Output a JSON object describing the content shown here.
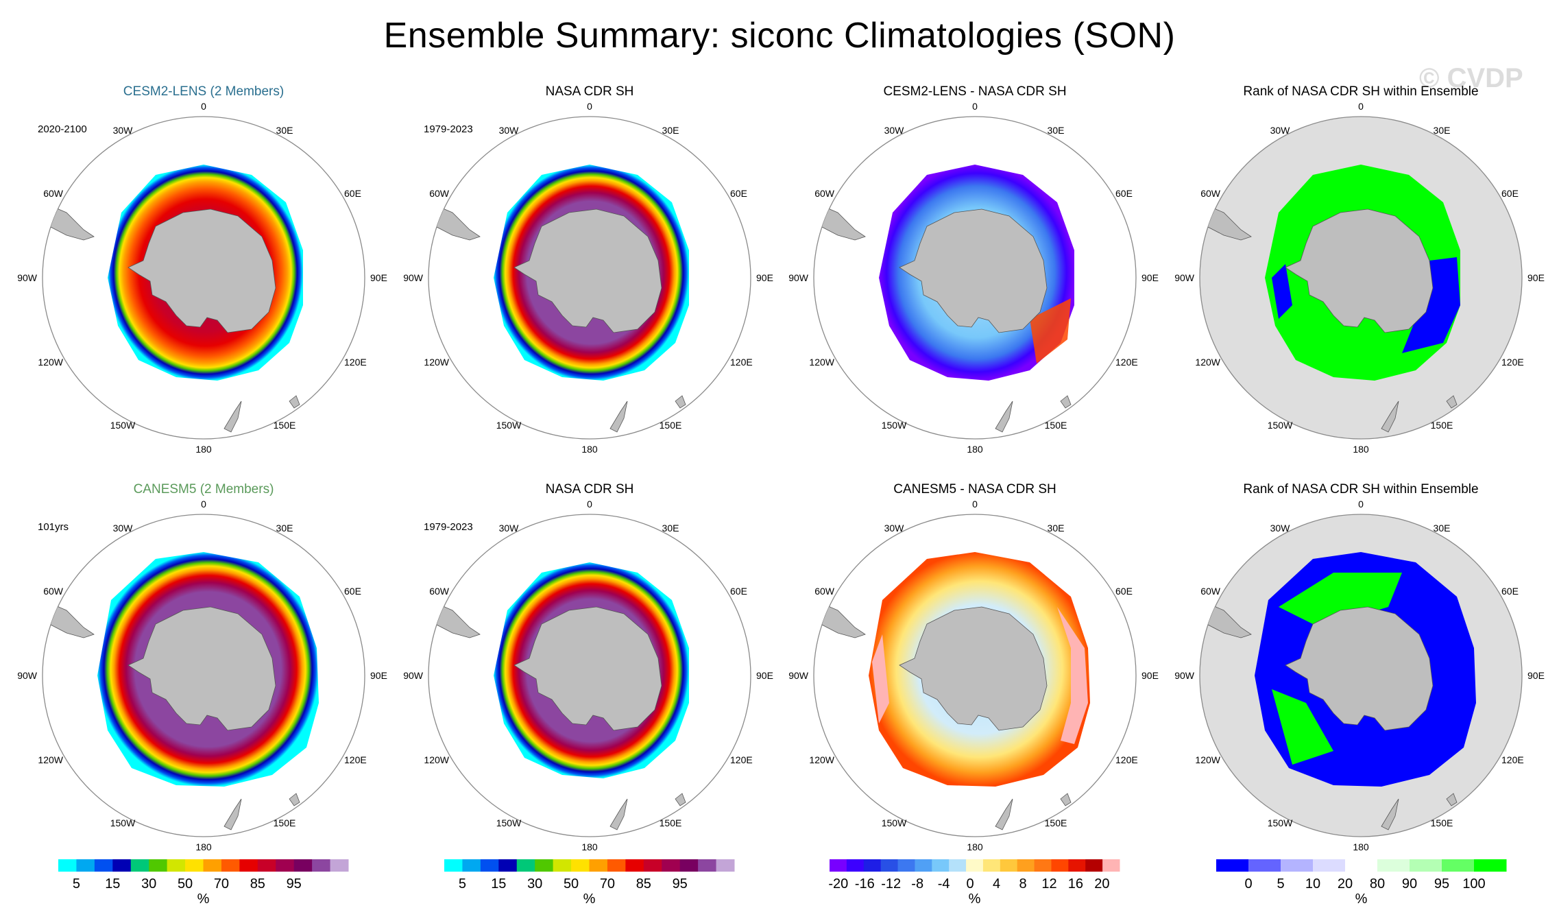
{
  "title": "Ensemble Summary: siconc Climatologies (SON)",
  "watermark": "© CVDP",
  "rows": [
    {
      "panels": [
        {
          "title": "CESM2-LENS (2 Members)",
          "title_color": "#2a6f8f",
          "period": "2020-2100",
          "kind": "clim_model"
        },
        {
          "title": "NASA CDR SH",
          "period": "1979-2023",
          "kind": "clim_obs"
        },
        {
          "title": "CESM2-LENS - NASA CDR SH",
          "kind": "diff"
        },
        {
          "title": "Rank of NASA CDR SH within Ensemble",
          "kind": "rank"
        }
      ]
    },
    {
      "panels": [
        {
          "title": "CANESM5 (2 Members)",
          "title_color": "#5a9a5a",
          "period": "101yrs",
          "kind": "clim_model2"
        },
        {
          "title": "NASA CDR SH",
          "period": "1979-2023",
          "kind": "clim_obs"
        },
        {
          "title": "CANESM5 - NASA CDR SH",
          "kind": "diff2"
        },
        {
          "title": "Rank of NASA CDR SH within Ensemble",
          "kind": "rank2"
        }
      ]
    }
  ],
  "map_labels": {
    "top": "0",
    "bottom": "180",
    "left": "90W",
    "right": "90E",
    "upper_left": [
      "30W",
      "60W"
    ],
    "upper_right": [
      "30E",
      "60E"
    ],
    "lower_left": [
      "120W",
      "150W"
    ],
    "lower_right": [
      "120E",
      "150E"
    ]
  },
  "colorbars": {
    "clim": {
      "units": "%",
      "labels": [
        "5",
        "15",
        "30",
        "50",
        "70",
        "85",
        "95"
      ],
      "colors": [
        "#00ffff",
        "#00a8f0",
        "#0050f0",
        "#0000b4",
        "#00c878",
        "#50c800",
        "#d2e600",
        "#ffe100",
        "#ffa000",
        "#ff5a00",
        "#e60000",
        "#c80028",
        "#a00050",
        "#780060",
        "#8c46a0",
        "#c3a5d7"
      ]
    },
    "diff": {
      "units": "%",
      "labels": [
        "-20",
        "-16",
        "-12",
        "-8",
        "-4",
        "0",
        "4",
        "8",
        "12",
        "16",
        "20"
      ],
      "colors": [
        "#7800ff",
        "#3c00ff",
        "#1e1ee6",
        "#2850e6",
        "#3c78f0",
        "#50a0f5",
        "#78c8fa",
        "#b4e1fa",
        "#fffac8",
        "#ffe678",
        "#ffc83c",
        "#ffa01e",
        "#ff7814",
        "#ff4600",
        "#e61400",
        "#b40000",
        "#ffb4b4"
      ]
    },
    "rank": {
      "units": "%",
      "labels": [
        "0",
        "5",
        "10",
        "20",
        "80",
        "90",
        "95",
        "100"
      ],
      "colors": [
        "#0000ff",
        "#6464ff",
        "#b4b4ff",
        "#dcdcff",
        "#ffffff",
        "#dcffdc",
        "#b4ffb4",
        "#64ff64",
        "#00ff00"
      ]
    }
  },
  "fills": {
    "land": "#bebebe",
    "rank_bg": "#dedede"
  }
}
